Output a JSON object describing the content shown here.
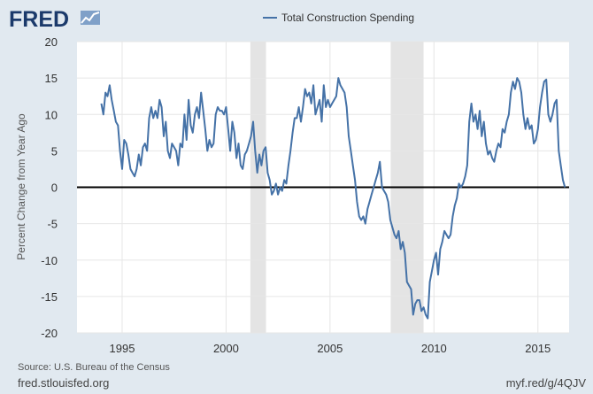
{
  "brand": {
    "logo_text": "FRED"
  },
  "footer": {
    "source": "Source: U.S. Bureau of the Census",
    "site": "fred.stlouisfed.org",
    "short_url": "myf.red/g/4QJV"
  },
  "colors": {
    "line": "#4572a7",
    "recession": "#e4e4e4",
    "plot_bg": "#ffffff",
    "page_bg": "#e1e9f0"
  },
  "chart_data": {
    "type": "line",
    "title": "",
    "legend": "top-center",
    "xlabel": "",
    "ylabel": "Percent Change from Year Ago",
    "xlim": [
      1992.83,
      2016.5
    ],
    "ylim": [
      -20,
      20
    ],
    "yticks": [
      20,
      15,
      10,
      5,
      0,
      -5,
      -10,
      -15,
      -20
    ],
    "xticks": [
      1995,
      2000,
      2005,
      2010,
      2015
    ],
    "recessions": [
      [
        2001.17,
        2001.92
      ],
      [
        2007.92,
        2009.5
      ]
    ],
    "series": [
      {
        "name": "Total Construction Spending",
        "points": [
          [
            1994.0,
            11.5
          ],
          [
            1994.1,
            10
          ],
          [
            1994.2,
            13
          ],
          [
            1994.3,
            12.5
          ],
          [
            1994.4,
            14
          ],
          [
            1994.5,
            12
          ],
          [
            1994.6,
            10.5
          ],
          [
            1994.7,
            9
          ],
          [
            1994.8,
            8.5
          ],
          [
            1994.9,
            5
          ],
          [
            1995.0,
            2.5
          ],
          [
            1995.1,
            6.5
          ],
          [
            1995.2,
            6
          ],
          [
            1995.3,
            4.5
          ],
          [
            1995.4,
            2.5
          ],
          [
            1995.5,
            2
          ],
          [
            1995.6,
            1.5
          ],
          [
            1995.7,
            2.5
          ],
          [
            1995.8,
            4.5
          ],
          [
            1995.9,
            3
          ],
          [
            1996.0,
            5.5
          ],
          [
            1996.1,
            6
          ],
          [
            1996.2,
            5
          ],
          [
            1996.3,
            9.5
          ],
          [
            1996.4,
            11
          ],
          [
            1996.5,
            9.5
          ],
          [
            1996.6,
            10.5
          ],
          [
            1996.7,
            9.5
          ],
          [
            1996.8,
            12
          ],
          [
            1996.9,
            11
          ],
          [
            1997.0,
            7
          ],
          [
            1997.1,
            9
          ],
          [
            1997.2,
            5
          ],
          [
            1997.3,
            4
          ],
          [
            1997.4,
            6
          ],
          [
            1997.5,
            5.5
          ],
          [
            1997.6,
            5
          ],
          [
            1997.7,
            3
          ],
          [
            1997.8,
            6
          ],
          [
            1997.9,
            5.5
          ],
          [
            1998.0,
            10
          ],
          [
            1998.1,
            6.5
          ],
          [
            1998.2,
            12
          ],
          [
            1998.3,
            8.5
          ],
          [
            1998.4,
            7.5
          ],
          [
            1998.5,
            10
          ],
          [
            1998.6,
            11
          ],
          [
            1998.7,
            9.5
          ],
          [
            1998.8,
            13
          ],
          [
            1998.9,
            10.5
          ],
          [
            1999.0,
            8
          ],
          [
            1999.1,
            5
          ],
          [
            1999.2,
            6.5
          ],
          [
            1999.3,
            5.5
          ],
          [
            1999.4,
            6
          ],
          [
            1999.5,
            10
          ],
          [
            1999.6,
            11
          ],
          [
            1999.7,
            10.5
          ],
          [
            1999.8,
            10.5
          ],
          [
            1999.9,
            10
          ],
          [
            2000.0,
            11
          ],
          [
            2000.1,
            8
          ],
          [
            2000.2,
            5
          ],
          [
            2000.3,
            9
          ],
          [
            2000.4,
            7.5
          ],
          [
            2000.5,
            4
          ],
          [
            2000.6,
            6
          ],
          [
            2000.7,
            3
          ],
          [
            2000.8,
            2.5
          ],
          [
            2000.9,
            4.5
          ],
          [
            2001.0,
            5
          ],
          [
            2001.1,
            6
          ],
          [
            2001.2,
            7
          ],
          [
            2001.3,
            9
          ],
          [
            2001.4,
            5
          ],
          [
            2001.5,
            2
          ],
          [
            2001.6,
            4.5
          ],
          [
            2001.7,
            3
          ],
          [
            2001.8,
            5
          ],
          [
            2001.9,
            5.5
          ],
          [
            2002.0,
            2
          ],
          [
            2002.1,
            1
          ],
          [
            2002.2,
            -1
          ],
          [
            2002.3,
            -0.5
          ],
          [
            2002.4,
            0.5
          ],
          [
            2002.5,
            -1
          ],
          [
            2002.6,
            0
          ],
          [
            2002.7,
            -0.5
          ],
          [
            2002.8,
            1
          ],
          [
            2002.9,
            0.5
          ],
          [
            2003.0,
            3
          ],
          [
            2003.1,
            5
          ],
          [
            2003.2,
            7.5
          ],
          [
            2003.3,
            9.5
          ],
          [
            2003.4,
            9.5
          ],
          [
            2003.5,
            11
          ],
          [
            2003.6,
            9
          ],
          [
            2003.7,
            11
          ],
          [
            2003.8,
            13.5
          ],
          [
            2003.9,
            12.5
          ],
          [
            2004.0,
            13
          ],
          [
            2004.1,
            11.5
          ],
          [
            2004.2,
            14
          ],
          [
            2004.3,
            10
          ],
          [
            2004.4,
            11
          ],
          [
            2004.5,
            12
          ],
          [
            2004.6,
            9
          ],
          [
            2004.7,
            14
          ],
          [
            2004.8,
            11
          ],
          [
            2004.9,
            12
          ],
          [
            2005.0,
            11
          ],
          [
            2005.1,
            11.5
          ],
          [
            2005.2,
            12
          ],
          [
            2005.3,
            12.5
          ],
          [
            2005.4,
            15
          ],
          [
            2005.5,
            14
          ],
          [
            2005.6,
            13.5
          ],
          [
            2005.7,
            13
          ],
          [
            2005.8,
            11
          ],
          [
            2005.9,
            7
          ],
          [
            2006.0,
            5
          ],
          [
            2006.1,
            3
          ],
          [
            2006.2,
            1
          ],
          [
            2006.3,
            -2
          ],
          [
            2006.4,
            -4
          ],
          [
            2006.5,
            -4.5
          ],
          [
            2006.6,
            -4
          ],
          [
            2006.7,
            -5
          ],
          [
            2006.8,
            -3
          ],
          [
            2006.9,
            -2
          ],
          [
            2007.0,
            -1
          ],
          [
            2007.1,
            0
          ],
          [
            2007.2,
            1
          ],
          [
            2007.3,
            2
          ],
          [
            2007.4,
            3.5
          ],
          [
            2007.5,
            0
          ],
          [
            2007.6,
            -0.5
          ],
          [
            2007.7,
            -1
          ],
          [
            2007.8,
            -2
          ],
          [
            2007.9,
            -4.5
          ],
          [
            2008.0,
            -5.5
          ],
          [
            2008.1,
            -6.5
          ],
          [
            2008.2,
            -7
          ],
          [
            2008.3,
            -6
          ],
          [
            2008.4,
            -8.5
          ],
          [
            2008.5,
            -7.5
          ],
          [
            2008.6,
            -9
          ],
          [
            2008.7,
            -13
          ],
          [
            2008.8,
            -13.5
          ],
          [
            2008.9,
            -14
          ],
          [
            2009.0,
            -17.5
          ],
          [
            2009.1,
            -16
          ],
          [
            2009.2,
            -15.5
          ],
          [
            2009.3,
            -15.5
          ],
          [
            2009.4,
            -17
          ],
          [
            2009.5,
            -16.5
          ],
          [
            2009.6,
            -17.5
          ],
          [
            2009.7,
            -18
          ],
          [
            2009.8,
            -13
          ],
          [
            2009.9,
            -11.5
          ],
          [
            2010.0,
            -10
          ],
          [
            2010.1,
            -9
          ],
          [
            2010.2,
            -12
          ],
          [
            2010.3,
            -8.5
          ],
          [
            2010.4,
            -7.5
          ],
          [
            2010.5,
            -6
          ],
          [
            2010.6,
            -6.5
          ],
          [
            2010.7,
            -7
          ],
          [
            2010.8,
            -6.5
          ],
          [
            2010.9,
            -4
          ],
          [
            2011.0,
            -2.5
          ],
          [
            2011.1,
            -1.5
          ],
          [
            2011.2,
            0.5
          ],
          [
            2011.3,
            0
          ],
          [
            2011.4,
            0.5
          ],
          [
            2011.5,
            1.5
          ],
          [
            2011.6,
            3
          ],
          [
            2011.7,
            9
          ],
          [
            2011.8,
            11.5
          ],
          [
            2011.9,
            9
          ],
          [
            2012.0,
            10
          ],
          [
            2012.1,
            8
          ],
          [
            2012.2,
            10.5
          ],
          [
            2012.3,
            7
          ],
          [
            2012.4,
            9
          ],
          [
            2012.5,
            6
          ],
          [
            2012.6,
            4.5
          ],
          [
            2012.7,
            5
          ],
          [
            2012.8,
            4
          ],
          [
            2012.9,
            3.5
          ],
          [
            2013.0,
            5
          ],
          [
            2013.1,
            6
          ],
          [
            2013.2,
            5.5
          ],
          [
            2013.3,
            8
          ],
          [
            2013.4,
            7.5
          ],
          [
            2013.5,
            9
          ],
          [
            2013.6,
            10
          ],
          [
            2013.7,
            13
          ],
          [
            2013.8,
            14.5
          ],
          [
            2013.9,
            13.5
          ],
          [
            2014.0,
            15
          ],
          [
            2014.1,
            14.5
          ],
          [
            2014.2,
            13
          ],
          [
            2014.3,
            10
          ],
          [
            2014.4,
            8
          ],
          [
            2014.5,
            9.5
          ],
          [
            2014.6,
            8
          ],
          [
            2014.7,
            8.5
          ],
          [
            2014.8,
            6
          ],
          [
            2014.9,
            6.5
          ],
          [
            2015.0,
            8
          ],
          [
            2015.1,
            11
          ],
          [
            2015.2,
            13
          ],
          [
            2015.3,
            14.5
          ],
          [
            2015.4,
            14.8
          ],
          [
            2015.5,
            10
          ],
          [
            2015.6,
            9
          ],
          [
            2015.7,
            10
          ],
          [
            2015.8,
            11.5
          ],
          [
            2015.9,
            12
          ],
          [
            2016.0,
            5
          ],
          [
            2016.1,
            3
          ],
          [
            2016.2,
            1
          ],
          [
            2016.3,
            0
          ]
        ]
      }
    ]
  }
}
